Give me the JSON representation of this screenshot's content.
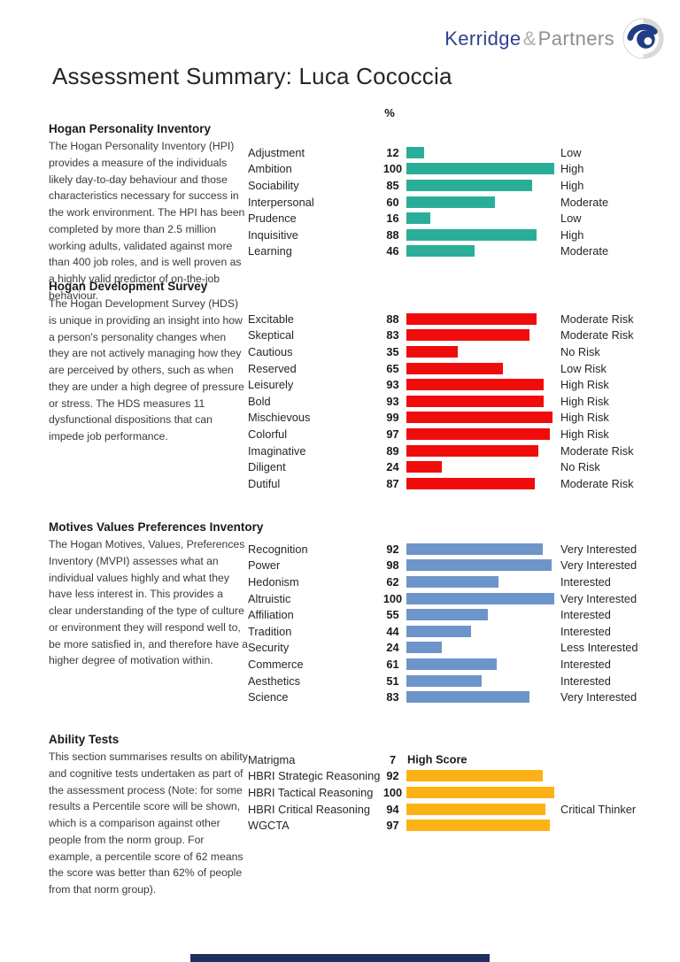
{
  "logo": {
    "name_primary": "Kerridge",
    "ampersand": "&",
    "name_secondary": "Partners",
    "icon": "swirl-koru-icon"
  },
  "page_title": "Assessment Summary: Luca Cococcia",
  "percent_header": "%",
  "colors": {
    "hpi_bar": "#2bae98",
    "hds_bar": "#f10c0c",
    "mvpi_bar": "#6e95c9",
    "ability_bar": "#fcb216",
    "logo_blue": "#2f4191",
    "logo_gray": "#8f8f8f",
    "footer_bar": "#1e3060"
  },
  "sections": [
    {
      "id": "hpi",
      "heading": "Hogan Personality Inventory",
      "description": "The Hogan Personality Inventory (HPI) provides a measure of the individuals likely day-to-day behaviour and those characteristics necessary for success in the work environment.  The HPI has been completed by more than 2.5 million working adults, validated against more than 400 job roles, and is well proven as a highly valid predictor of on-the-job behaviour.",
      "bar_color": "#2bae98",
      "rows": [
        {
          "label": "Adjustment",
          "score": 12,
          "rating": "Low"
        },
        {
          "label": "Ambition",
          "score": 100,
          "rating": "High"
        },
        {
          "label": "Sociability",
          "score": 85,
          "rating": "High"
        },
        {
          "label": "Interpersonal",
          "score": 60,
          "rating": "Moderate"
        },
        {
          "label": "Prudence",
          "score": 16,
          "rating": "Low"
        },
        {
          "label": "Inquisitive",
          "score": 88,
          "rating": "High"
        },
        {
          "label": "Learning",
          "score": 46,
          "rating": "Moderate"
        }
      ]
    },
    {
      "id": "hds",
      "heading": "Hogan Development Survey",
      "description": "The Hogan Development Survey (HDS) is unique in providing an insight into how a person's personality changes when they are not actively managing how they are perceived by others, such as when they are under a high degree of pressure or stress.  The HDS measures 11 dysfunctional dispositions that can impede job performance.",
      "bar_color": "#f10c0c",
      "rows": [
        {
          "label": "Excitable",
          "score": 88,
          "rating": "Moderate Risk"
        },
        {
          "label": "Skeptical",
          "score": 83,
          "rating": "Moderate Risk"
        },
        {
          "label": "Cautious",
          "score": 35,
          "rating": "No Risk"
        },
        {
          "label": "Reserved",
          "score": 65,
          "rating": "Low Risk"
        },
        {
          "label": "Leisurely",
          "score": 93,
          "rating": "High Risk"
        },
        {
          "label": "Bold",
          "score": 93,
          "rating": "High Risk"
        },
        {
          "label": "Mischievous",
          "score": 99,
          "rating": "High Risk"
        },
        {
          "label": "Colorful",
          "score": 97,
          "rating": "High Risk"
        },
        {
          "label": "Imaginative",
          "score": 89,
          "rating": "Moderate Risk"
        },
        {
          "label": "Diligent",
          "score": 24,
          "rating": "No Risk"
        },
        {
          "label": "Dutiful",
          "score": 87,
          "rating": "Moderate Risk"
        }
      ]
    },
    {
      "id": "mvpi",
      "heading": "Motives Values Preferences Inventory",
      "description": "The Hogan Motives, Values, Preferences Inventory (MVPI) assesses what an individual values highly and what they have less interest in.  This provides a clear understanding of the type of culture or environment they will respond well to, be more satisfied in, and therefore have a higher degree of motivation within.",
      "bar_color": "#6e95c9",
      "rows": [
        {
          "label": "Recognition",
          "score": 92,
          "rating": "Very Interested"
        },
        {
          "label": "Power",
          "score": 98,
          "rating": "Very Interested"
        },
        {
          "label": "Hedonism",
          "score": 62,
          "rating": "Interested"
        },
        {
          "label": "Altruistic",
          "score": 100,
          "rating": "Very Interested"
        },
        {
          "label": "Affiliation",
          "score": 55,
          "rating": "Interested"
        },
        {
          "label": "Tradition",
          "score": 44,
          "rating": "Interested"
        },
        {
          "label": "Security",
          "score": 24,
          "rating": "Less Interested"
        },
        {
          "label": "Commerce",
          "score": 61,
          "rating": "Interested"
        },
        {
          "label": "Aesthetics",
          "score": 51,
          "rating": "Interested"
        },
        {
          "label": "Science",
          "score": 83,
          "rating": "Very Interested"
        }
      ]
    },
    {
      "id": "ability",
      "heading": "Ability Tests",
      "description": "This section summarises results on ability and cognitive tests undertaken as part of the assessment process (Note: for some results a Percentile score will be shown, which is a comparison against other people from the norm group.  For example, a percentile score of 62 means the score was better than 62% of people from that norm group).",
      "bar_color": "#fcb216",
      "rows": [
        {
          "label": "Matrigma",
          "score": 7,
          "rating": "",
          "bar": false,
          "note": "High Score"
        },
        {
          "label": "HBRI Strategic Reasoning",
          "score": 92,
          "rating": ""
        },
        {
          "label": "HBRI Tactical Reasoning",
          "score": 100,
          "rating": ""
        },
        {
          "label": "HBRI Critical Reasoning",
          "score": 94,
          "rating": "Critical Thinker"
        },
        {
          "label": "WGCTA",
          "score": 97,
          "rating": ""
        }
      ]
    }
  ],
  "chart_data": [
    {
      "type": "bar",
      "title": "Hogan Personality Inventory",
      "orientation": "horizontal",
      "unit": "%",
      "xlim": [
        0,
        100
      ],
      "bar_color": "#2bae98",
      "categories": [
        "Adjustment",
        "Ambition",
        "Sociability",
        "Interpersonal",
        "Prudence",
        "Inquisitive",
        "Learning"
      ],
      "values": [
        12,
        100,
        85,
        60,
        16,
        88,
        46
      ],
      "value_labels": [
        "Low",
        "High",
        "High",
        "Moderate",
        "Low",
        "High",
        "Moderate"
      ]
    },
    {
      "type": "bar",
      "title": "Hogan Development Survey",
      "orientation": "horizontal",
      "unit": "%",
      "xlim": [
        0,
        100
      ],
      "bar_color": "#f10c0c",
      "categories": [
        "Excitable",
        "Skeptical",
        "Cautious",
        "Reserved",
        "Leisurely",
        "Bold",
        "Mischievous",
        "Colorful",
        "Imaginative",
        "Diligent",
        "Dutiful"
      ],
      "values": [
        88,
        83,
        35,
        65,
        93,
        93,
        99,
        97,
        89,
        24,
        87
      ],
      "value_labels": [
        "Moderate Risk",
        "Moderate Risk",
        "No Risk",
        "Low Risk",
        "High Risk",
        "High Risk",
        "High Risk",
        "High Risk",
        "Moderate Risk",
        "No Risk",
        "Moderate Risk"
      ]
    },
    {
      "type": "bar",
      "title": "Motives Values Preferences Inventory",
      "orientation": "horizontal",
      "unit": "%",
      "xlim": [
        0,
        100
      ],
      "bar_color": "#6e95c9",
      "categories": [
        "Recognition",
        "Power",
        "Hedonism",
        "Altruistic",
        "Affiliation",
        "Tradition",
        "Security",
        "Commerce",
        "Aesthetics",
        "Science"
      ],
      "values": [
        92,
        98,
        62,
        100,
        55,
        44,
        24,
        61,
        51,
        83
      ],
      "value_labels": [
        "Very Interested",
        "Very Interested",
        "Interested",
        "Very Interested",
        "Interested",
        "Interested",
        "Less Interested",
        "Interested",
        "Interested",
        "Very Interested"
      ]
    },
    {
      "type": "bar",
      "title": "Ability Tests",
      "orientation": "horizontal",
      "unit": "%",
      "xlim": [
        0,
        100
      ],
      "bar_color": "#fcb216",
      "categories": [
        "Matrigma",
        "HBRI Strategic Reasoning",
        "HBRI Tactical Reasoning",
        "HBRI Critical Reasoning",
        "WGCTA"
      ],
      "values": [
        7,
        92,
        100,
        94,
        97
      ],
      "value_labels": [
        "High Score",
        "",
        "",
        "Critical Thinker",
        ""
      ],
      "annotations": [
        "Matrigma shows bold text 'High Score' instead of a bar"
      ]
    }
  ]
}
